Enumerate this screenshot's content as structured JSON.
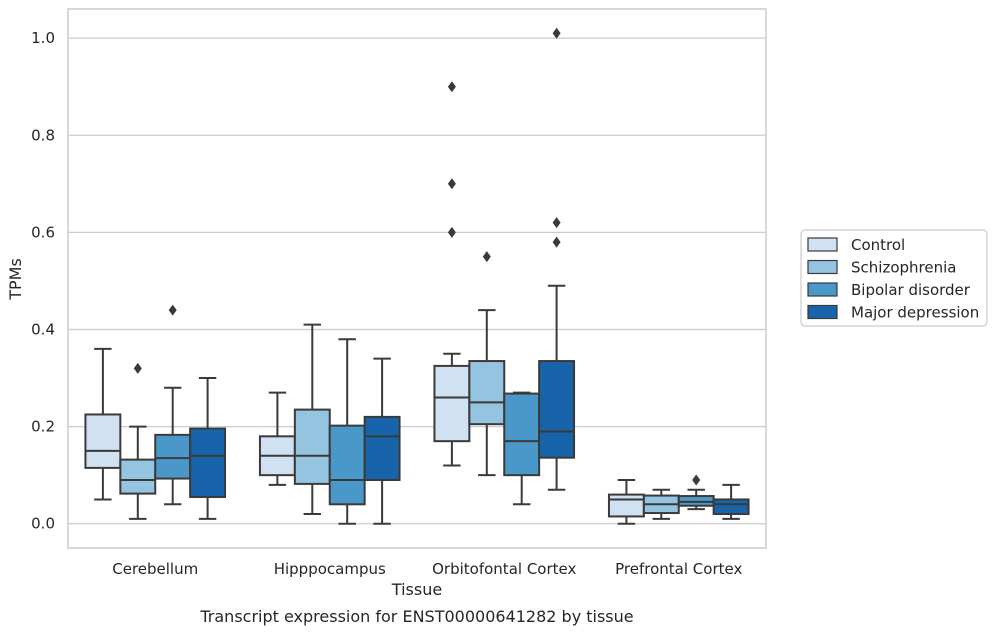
{
  "chart_data": {
    "type": "box",
    "title": "",
    "caption": "Transcript expression for ENST00000641282 by tissue",
    "xlabel": "Tissue",
    "ylabel": "TPMs",
    "ylim": [
      -0.05,
      1.06
    ],
    "yticks": [
      "0.0",
      "0.2",
      "0.4",
      "0.6",
      "0.8",
      "1.0"
    ],
    "grid": true,
    "legend_position": "right",
    "categories": [
      "Cerebellum",
      "Hipppocampus",
      "Orbitofontal Cortex",
      "Prefrontal Cortex"
    ],
    "series": [
      {
        "name": "Control",
        "color": "#d0e1f2",
        "boxes": [
          {
            "min": 0.05,
            "q1": 0.115,
            "median": 0.15,
            "q3": 0.225,
            "max": 0.36,
            "outliers": []
          },
          {
            "min": 0.08,
            "q1": 0.1,
            "median": 0.14,
            "q3": 0.18,
            "max": 0.27,
            "outliers": []
          },
          {
            "min": 0.12,
            "q1": 0.17,
            "median": 0.26,
            "q3": 0.325,
            "max": 0.35,
            "outliers": [
              0.6,
              0.7,
              0.9
            ]
          },
          {
            "min": 0.0,
            "q1": 0.015,
            "median": 0.05,
            "q3": 0.06,
            "max": 0.09,
            "outliers": []
          }
        ]
      },
      {
        "name": "Schizophrenia",
        "color": "#94c4df",
        "boxes": [
          {
            "min": 0.01,
            "q1": 0.062,
            "median": 0.09,
            "q3": 0.132,
            "max": 0.2,
            "outliers": [
              0.32
            ]
          },
          {
            "min": 0.02,
            "q1": 0.082,
            "median": 0.14,
            "q3": 0.235,
            "max": 0.41,
            "outliers": []
          },
          {
            "min": 0.1,
            "q1": 0.205,
            "median": 0.25,
            "q3": 0.335,
            "max": 0.44,
            "outliers": [
              0.55
            ]
          },
          {
            "min": 0.01,
            "q1": 0.022,
            "median": 0.04,
            "q3": 0.058,
            "max": 0.07,
            "outliers": []
          }
        ]
      },
      {
        "name": "Bipolar disorder",
        "color": "#4a98c9",
        "boxes": [
          {
            "min": 0.04,
            "q1": 0.093,
            "median": 0.135,
            "q3": 0.183,
            "max": 0.28,
            "outliers": [
              0.44
            ]
          },
          {
            "min": 0.0,
            "q1": 0.04,
            "median": 0.09,
            "q3": 0.202,
            "max": 0.38,
            "outliers": []
          },
          {
            "min": 0.04,
            "q1": 0.1,
            "median": 0.17,
            "q3": 0.268,
            "max": 0.27,
            "outliers": []
          },
          {
            "min": 0.03,
            "q1": 0.037,
            "median": 0.045,
            "q3": 0.057,
            "max": 0.07,
            "outliers": [
              0.09
            ]
          }
        ]
      },
      {
        "name": "Major depression",
        "color": "#1764ab",
        "boxes": [
          {
            "min": 0.01,
            "q1": 0.055,
            "median": 0.14,
            "q3": 0.196,
            "max": 0.3,
            "outliers": []
          },
          {
            "min": 0.0,
            "q1": 0.09,
            "median": 0.18,
            "q3": 0.22,
            "max": 0.34,
            "outliers": []
          },
          {
            "min": 0.07,
            "q1": 0.136,
            "median": 0.19,
            "q3": 0.335,
            "max": 0.49,
            "outliers": [
              0.58,
              0.62,
              1.01
            ]
          },
          {
            "min": 0.01,
            "q1": 0.02,
            "median": 0.04,
            "q3": 0.05,
            "max": 0.08,
            "outliers": []
          }
        ]
      }
    ]
  }
}
